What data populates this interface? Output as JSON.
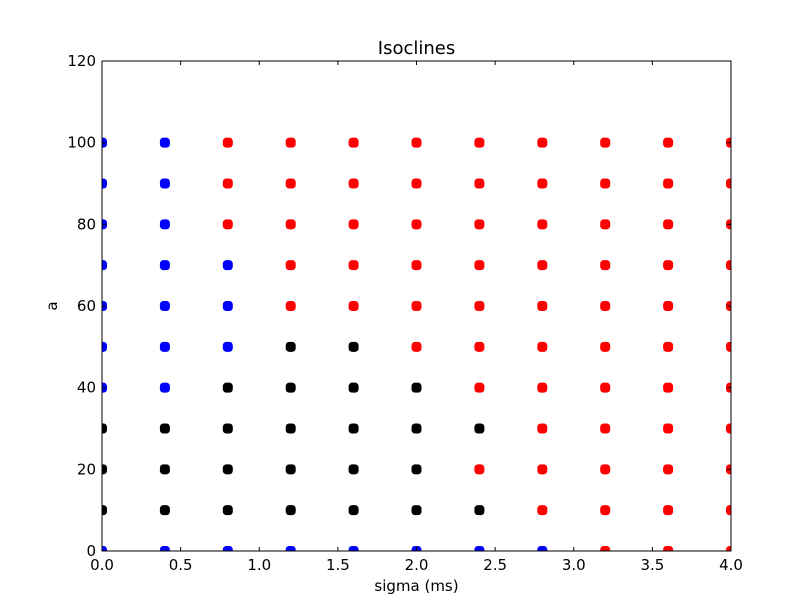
{
  "chart_data": {
    "type": "scatter",
    "title": "Isoclines",
    "xlabel": "sigma (ms)",
    "ylabel": "a",
    "xlim": [
      0.0,
      4.0
    ],
    "ylim": [
      0,
      120
    ],
    "xticks": [
      "0.0",
      "0.5",
      "1.0",
      "1.5",
      "2.0",
      "2.5",
      "3.0",
      "3.5",
      "4.0"
    ],
    "yticks": [
      "0",
      "20",
      "40",
      "60",
      "80",
      "100",
      "120"
    ],
    "grid": false,
    "colors": {
      "blue": "#0000ff",
      "red": "#ff0000",
      "black": "#000000"
    },
    "x": [
      0.0,
      0.4,
      0.8,
      1.2,
      1.6,
      2.0,
      2.4,
      2.8,
      3.2,
      3.6,
      4.0
    ],
    "y": [
      0,
      10,
      20,
      30,
      40,
      50,
      60,
      70,
      80,
      90,
      100
    ],
    "color_grid": [
      [
        "blue",
        "blue",
        "blue",
        "blue",
        "blue",
        "blue",
        "blue",
        "blue",
        "red",
        "red",
        "red"
      ],
      [
        "black",
        "black",
        "black",
        "black",
        "black",
        "black",
        "black",
        "red",
        "red",
        "red",
        "red"
      ],
      [
        "black",
        "black",
        "black",
        "black",
        "black",
        "black",
        "red",
        "red",
        "red",
        "red",
        "red"
      ],
      [
        "black",
        "black",
        "black",
        "black",
        "black",
        "black",
        "black",
        "red",
        "red",
        "red",
        "red"
      ],
      [
        "blue",
        "blue",
        "black",
        "black",
        "black",
        "black",
        "red",
        "red",
        "red",
        "red",
        "red"
      ],
      [
        "blue",
        "blue",
        "blue",
        "black",
        "black",
        "red",
        "red",
        "red",
        "red",
        "red",
        "red"
      ],
      [
        "blue",
        "blue",
        "blue",
        "red",
        "red",
        "red",
        "red",
        "red",
        "red",
        "red",
        "red"
      ],
      [
        "blue",
        "blue",
        "blue",
        "red",
        "red",
        "red",
        "red",
        "red",
        "red",
        "red",
        "red"
      ],
      [
        "blue",
        "blue",
        "red",
        "red",
        "red",
        "red",
        "red",
        "red",
        "red",
        "red",
        "red"
      ],
      [
        "blue",
        "blue",
        "red",
        "red",
        "red",
        "red",
        "red",
        "red",
        "red",
        "red",
        "red"
      ],
      [
        "blue",
        "blue",
        "red",
        "red",
        "red",
        "red",
        "red",
        "red",
        "red",
        "red",
        "red"
      ]
    ]
  }
}
